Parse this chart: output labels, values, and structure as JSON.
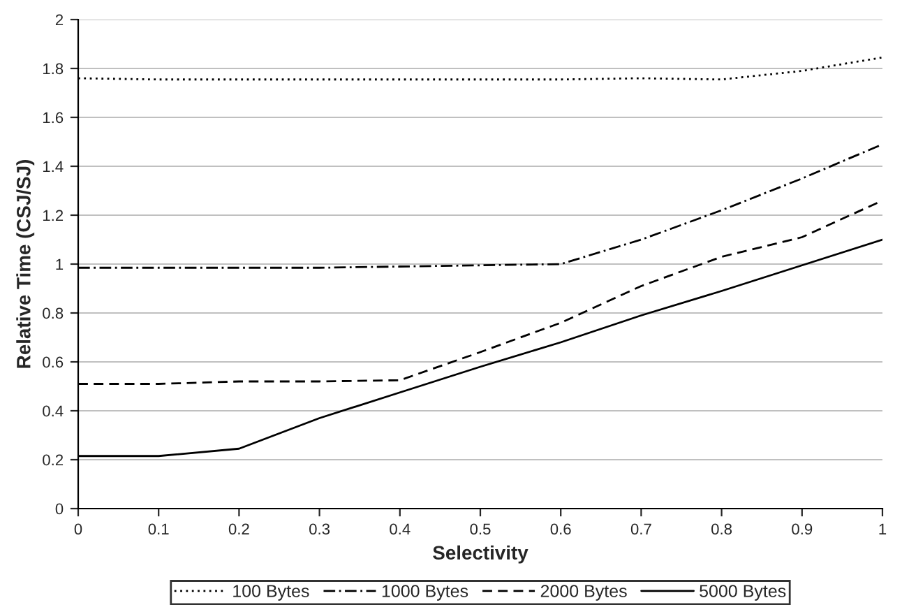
{
  "chart_data": {
    "type": "line",
    "xlabel": "Selectivity",
    "ylabel": "Relative Time (CSJ/SJ)",
    "x": [
      0,
      0.1,
      0.2,
      0.3,
      0.4,
      0.5,
      0.6,
      0.7,
      0.8,
      0.9,
      1
    ],
    "xlim": [
      0,
      1
    ],
    "xticks": [
      0,
      0.1,
      0.2,
      0.3,
      0.4,
      0.5,
      0.6,
      0.7,
      0.8,
      0.9,
      1
    ],
    "ylim": [
      0,
      2
    ],
    "yticks": [
      0,
      0.2,
      0.4,
      0.6,
      0.8,
      1,
      1.2,
      1.4,
      1.6,
      1.8,
      2
    ],
    "grid": "y",
    "legend": "bottom",
    "marker": "none",
    "series": [
      {
        "name": "100 Bytes",
        "color": "#000000",
        "line_style": "dotted",
        "values": [
          1.76,
          1.755,
          1.755,
          1.755,
          1.755,
          1.755,
          1.755,
          1.76,
          1.755,
          1.79,
          1.845
        ]
      },
      {
        "name": "1000 Bytes",
        "color": "#000000",
        "line_style": "dashdot",
        "values": [
          0.985,
          0.985,
          0.985,
          0.985,
          0.99,
          0.995,
          1.0,
          1.1,
          1.22,
          1.35,
          1.49
        ]
      },
      {
        "name": "2000 Bytes",
        "color": "#000000",
        "line_style": "dashed",
        "values": [
          0.51,
          0.51,
          0.52,
          0.52,
          0.525,
          0.64,
          0.76,
          0.91,
          1.03,
          1.11,
          1.26
        ]
      },
      {
        "name": "5000 Bytes",
        "color": "#000000",
        "line_style": "solid",
        "values": [
          0.215,
          0.215,
          0.245,
          0.37,
          0.475,
          0.58,
          0.68,
          0.79,
          0.89,
          0.995,
          1.1
        ]
      }
    ]
  }
}
